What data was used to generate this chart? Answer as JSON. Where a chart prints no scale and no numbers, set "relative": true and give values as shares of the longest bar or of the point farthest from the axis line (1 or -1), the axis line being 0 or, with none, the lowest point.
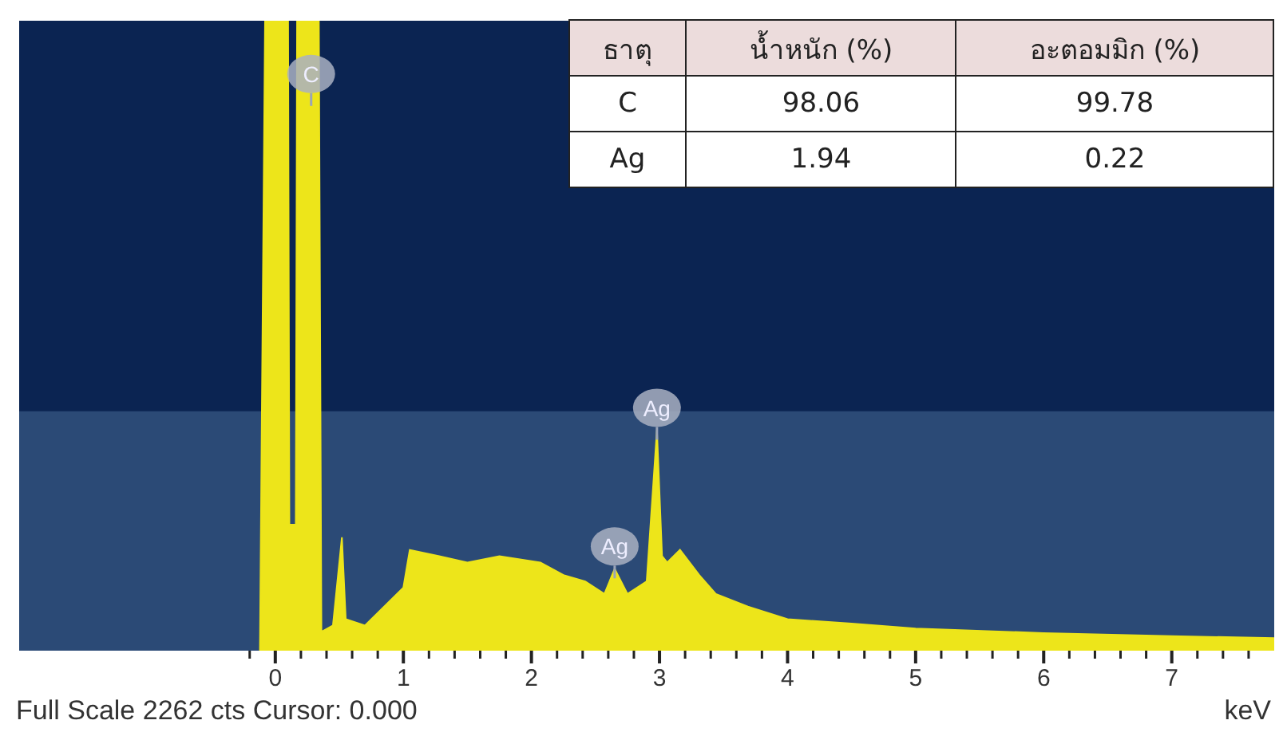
{
  "chart_data": {
    "type": "area",
    "relative": true,
    "xlabel": "keV",
    "x": [
      -0.12,
      -0.08,
      0.1,
      0.11,
      0.16,
      0.17,
      0.34,
      0.36,
      0.45,
      0.52,
      0.55,
      0.7,
      0.85,
      1.0,
      1.05,
      1.28,
      1.5,
      1.75,
      2.07,
      2.25,
      2.42,
      2.57,
      2.65,
      2.75,
      2.9,
      2.98,
      3.02,
      3.06,
      3.16,
      3.31,
      3.44,
      3.69,
      4.0,
      4.5,
      5.0,
      6.0,
      7.0,
      7.8
    ],
    "values": [
      0,
      1,
      1,
      0.2,
      0.2,
      1,
      1,
      0.03,
      0.04,
      0.18,
      0.05,
      0.04,
      0.07,
      0.1,
      0.16,
      0.15,
      0.14,
      0.15,
      0.14,
      0.12,
      0.11,
      0.09,
      0.13,
      0.09,
      0.11,
      0.35,
      0.15,
      0.14,
      0.16,
      0.12,
      0.09,
      0.07,
      0.05,
      0.043,
      0.035,
      0.028,
      0.023,
      0.02
    ],
    "color": "#ede51a",
    "xlim": [
      -2,
      7.8
    ],
    "xticks": [
      {
        "value": -0.2,
        "label": null
      },
      0,
      {
        "value": 0.2,
        "label": null
      },
      {
        "value": 0.4,
        "label": null
      },
      {
        "value": 0.6,
        "label": null
      },
      {
        "value": 0.8,
        "label": null
      },
      1,
      {
        "value": 1.2,
        "label": null
      },
      {
        "value": 1.4,
        "label": null
      },
      {
        "value": 1.6,
        "label": null
      },
      {
        "value": 1.8,
        "label": null
      },
      2,
      {
        "value": 2.2,
        "label": null
      },
      {
        "value": 2.4,
        "label": null
      },
      {
        "value": 2.6,
        "label": null
      },
      {
        "value": 2.8,
        "label": null
      },
      3,
      {
        "value": 3.2,
        "label": null
      },
      {
        "value": 3.4,
        "label": null
      },
      {
        "value": 3.6,
        "label": null
      },
      {
        "value": 3.8,
        "label": null
      },
      4,
      {
        "value": 4.2,
        "label": null
      },
      {
        "value": 4.4,
        "label": null
      },
      {
        "value": 4.6,
        "label": null
      },
      {
        "value": 4.8,
        "label": null
      },
      5,
      {
        "value": 5.2,
        "label": null
      },
      {
        "value": 5.4,
        "label": null
      },
      {
        "value": 5.6,
        "label": null
      },
      {
        "value": 5.8,
        "label": null
      },
      6,
      {
        "value": 6.2,
        "label": null
      },
      {
        "value": 6.4,
        "label": null
      },
      {
        "value": 6.6,
        "label": null
      },
      {
        "value": 6.8,
        "label": null
      },
      7,
      {
        "value": 7.2,
        "label": null
      },
      {
        "value": 7.4,
        "label": null
      },
      {
        "value": 7.6,
        "label": null
      }
    ],
    "bands": [
      {
        "axis": "y",
        "from": 0,
        "to": 0.38,
        "color": "#2b4a76"
      }
    ],
    "annotations": [
      {
        "text": "C",
        "x": 0.28,
        "y": 0.88
      },
      {
        "text": "Ag",
        "x": 2.65,
        "y": 0.13
      },
      {
        "text": "Ag",
        "x": 2.98,
        "y": 0.35
      },
      "Full Scale 2262 cts Cursor: 0.000",
      "ธาตุ",
      "น้ำหนัก (%)",
      "อะตอมมิก (%)",
      "C",
      "98.06",
      "99.78",
      "Ag",
      "1.94",
      "0.22"
    ]
  }
}
